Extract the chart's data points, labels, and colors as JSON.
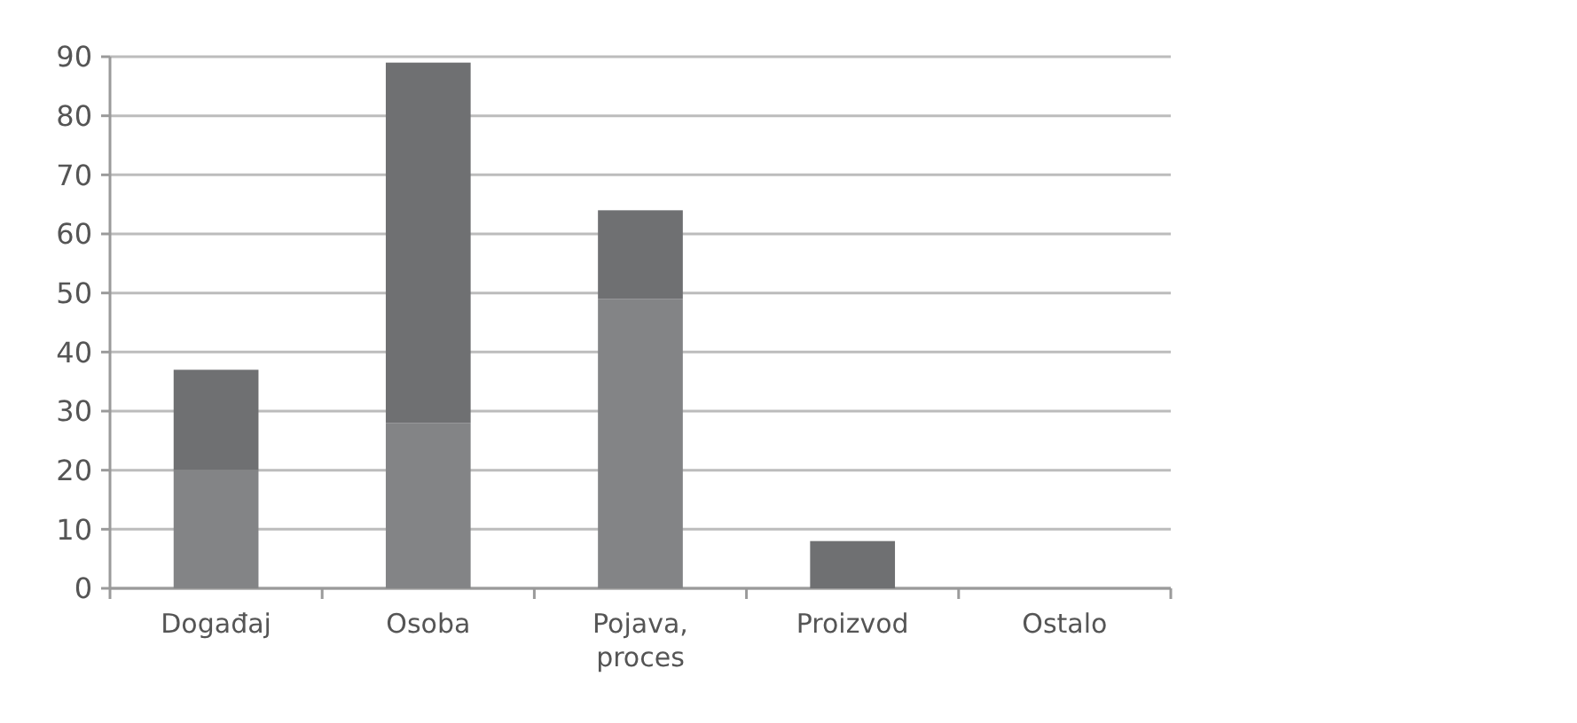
{
  "chart_data": {
    "type": "bar",
    "stacked": true,
    "categories": [
      "Događaj",
      "Osoba",
      "Pojava, proces",
      "Proizvod",
      "Ostalo"
    ],
    "series": [
      {
        "color": "#838486",
        "values": [
          20,
          28,
          49,
          0,
          0
        ]
      },
      {
        "color": "#6f7072",
        "values": [
          17,
          61,
          15,
          8,
          0
        ]
      }
    ],
    "ylim": [
      0,
      90
    ],
    "yticks": [
      0,
      10,
      20,
      30,
      40,
      50,
      60,
      70,
      80,
      90
    ],
    "grid": "y"
  }
}
